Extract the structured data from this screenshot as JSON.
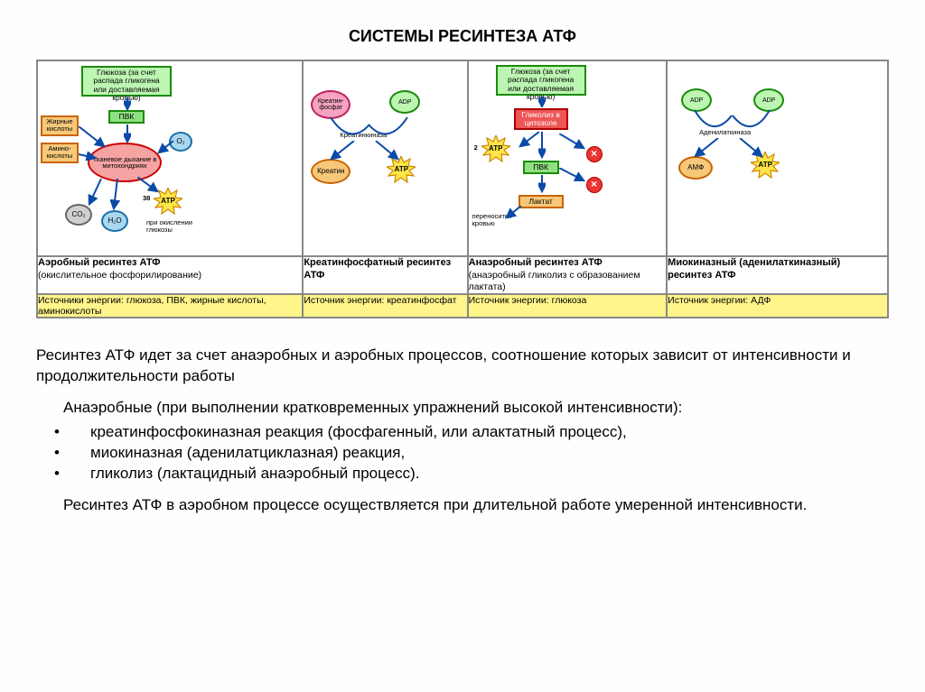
{
  "title": "СИСТЕМЫ РЕСИНТЕЗА АТФ",
  "cols": [
    {
      "name_html": "<b>Аэробный ресинтез АТФ</b><br>(окислительное фосфорилирование)",
      "source": "Источники энергии: глюкоза, ПВК, жирные кислоты, аминокислоты",
      "d": {
        "glucose": "Глюкоза (за счет распада гликогена или доставляемая кровью)",
        "pvk": "ПВК",
        "fat": "Жирные кислоты",
        "amino": "Амино-кислоты",
        "resp": "Тканевое дыхание в митохондриях",
        "o2": "O₂",
        "co2": "CO₂",
        "h2o": "H₂O",
        "atp": "АТР",
        "atp_n": "38",
        "note": "при окислении глюкозы"
      }
    },
    {
      "name_html": "<b>Креатинфосфатный ресинтез АТФ</b>",
      "source": "Источник энергии: креатинфосфат",
      "d": {
        "cp": "Креатин-фосфат",
        "adp": "ADP",
        "enzyme": "Креатинкиназа",
        "creatine": "Креатин",
        "atp": "АТР"
      }
    },
    {
      "name_html": "<b>Анаэробный ресинтез АТФ</b><br>(анаэробный гликолиз с образованием лактата)",
      "source": "Источник энергии: глюкоза",
      "d": {
        "glucose": "Глюкоза (за счет распада гликогена или доставляемая кровью)",
        "glyc": "Гликолиз в цитозоле",
        "atp": "АТР",
        "atp_n": "2",
        "pvk": "ПВК",
        "lactate": "Лактат",
        "note": "переносится кровью"
      }
    },
    {
      "name_html": "<b>Миокиназный (аденилаткиназный) ресинтез АТФ</b>",
      "source": "Источник энергии: АДФ",
      "d": {
        "adp1": "ADP",
        "adp2": "ADP",
        "enzyme": "Аденилаткиназа",
        "amp": "АМФ",
        "atp": "АТР"
      }
    }
  ],
  "text": {
    "p1": "Ресинтез АТФ идет за счет анаэробных и аэробных процессов, соотношение которых зависит от интенсивности и продолжительности работы",
    "p2": "Анаэробные (при выполнении кратковременных упражнений высокой интенсивности):",
    "b1": "креатинфосфокиназная реакция (фосфагенный, или алактатный процесс),",
    "b2": "миокиназная (аденилатциклазная) реакция,",
    "b3": "гликолиз (лактацидный анаэробный процесс).",
    "p3": "Ресинтез АТФ в аэробном процессе осуществляется при длительной работе умеренной интенсивности."
  },
  "colors": {
    "green": "#bdf5b3",
    "green_b": "#1a8c0a",
    "orange": "#f7c87a",
    "orange_b": "#c86400",
    "red": "#f5a3a3",
    "red_b": "#c00",
    "yellow_star": "#ffe648",
    "star_b": "#cc8800",
    "arrow": "#0a4aa8"
  }
}
